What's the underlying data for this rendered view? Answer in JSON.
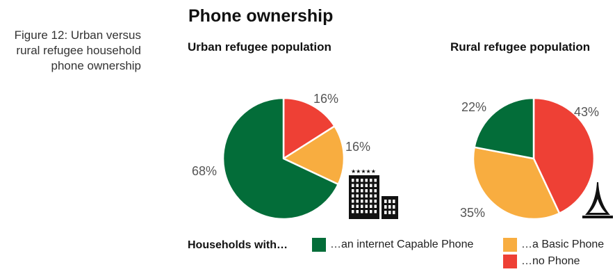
{
  "caption": "Figure 12: Urban versus rural refugee household phone ownership",
  "chart_data": [
    {
      "type": "pie",
      "title": "Phone ownership",
      "subtitle": "Urban refugee population",
      "slices": [
        {
          "label": "…no Phone",
          "value": 16,
          "value_label": "16%",
          "color": "#ee4035"
        },
        {
          "label": "…a Basic Phone",
          "value": 16,
          "value_label": "16%",
          "color": "#f8ad40"
        },
        {
          "label": "…an internet Capable Phone",
          "value": 68,
          "value_label": "68%",
          "color": "#036d39"
        }
      ],
      "start_angle_deg": 0,
      "direction": "clockwise",
      "icon": "city-buildings-icon"
    },
    {
      "type": "pie",
      "subtitle": "Rural refugee population",
      "slices": [
        {
          "label": "…no Phone",
          "value": 43,
          "value_label": "43%",
          "color": "#ee4035"
        },
        {
          "label": "…a Basic Phone",
          "value": 35,
          "value_label": "35%",
          "color": "#f8ad40"
        },
        {
          "label": "…an internet Capable Phone",
          "value": 22,
          "value_label": "22%",
          "color": "#036d39"
        }
      ],
      "start_angle_deg": 0,
      "direction": "clockwise",
      "icon": "tent-icon"
    }
  ],
  "legend": {
    "lead": "Households with…",
    "placement": "bottom",
    "items": [
      {
        "label": "…an internet Capable Phone",
        "color": "#036d39"
      },
      {
        "label": "…a Basic Phone",
        "color": "#f8ad40"
      },
      {
        "label": "…no Phone",
        "color": "#ee4035"
      }
    ]
  }
}
